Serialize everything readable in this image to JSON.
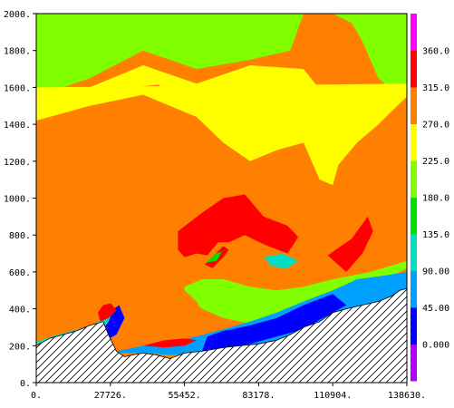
{
  "chart_data": {
    "type": "heatmap",
    "title": "",
    "xlabel": "",
    "ylabel": "",
    "x_ticks": [
      "0.",
      "27726.",
      "55452.",
      "83178.",
      "110904.",
      "138630."
    ],
    "x_tick_values": [
      0,
      27726,
      55452,
      83178,
      110904,
      138630
    ],
    "xlim": [
      0,
      138630
    ],
    "y_ticks": [
      "0.",
      "200.",
      "400.",
      "600.",
      "800.",
      "1000.",
      "1200.",
      "1400.",
      "1600.",
      "1800.",
      "2000."
    ],
    "y_tick_values": [
      0,
      200,
      400,
      600,
      800,
      1000,
      1200,
      1400,
      1600,
      1800,
      2000
    ],
    "ylim": [
      0,
      2000
    ],
    "colorbar": {
      "labels": [
        "0.000",
        "45.00",
        "90.00",
        "135.0",
        "180.0",
        "225.0",
        "270.0",
        "315.0",
        "360.0"
      ],
      "levels": [
        0,
        45,
        90,
        135,
        180,
        225,
        270,
        315,
        360
      ],
      "colors": [
        "#b000ff",
        "#0000ff",
        "#00a0ff",
        "#00e0c0",
        "#00e000",
        "#80ff00",
        "#ffff00",
        "#ff8000",
        "#ff0000",
        "#ff00ff"
      ]
    },
    "terrain": {
      "fill": "hatched",
      "profile_x": [
        0,
        5000,
        10000,
        15000,
        20000,
        25000,
        27000,
        30000,
        33000,
        36000,
        40000,
        45000,
        50000,
        55452,
        62000,
        70000,
        76000,
        83178,
        90000,
        95000,
        100000,
        106000,
        110904,
        116000,
        122000,
        128000,
        133000,
        136000,
        138630
      ],
      "profile_z": [
        200,
        240,
        260,
        280,
        310,
        330,
        260,
        170,
        140,
        150,
        160,
        150,
        130,
        160,
        170,
        190,
        200,
        210,
        230,
        260,
        300,
        330,
        380,
        400,
        420,
        440,
        470,
        500,
        510
      ]
    },
    "regions": [
      {
        "value": 300,
        "x": [
          0,
          138630,
          138630,
          0
        ],
        "z": [
          0,
          0,
          2000,
          2000
        ]
      },
      {
        "value": 200,
        "x": [
          0,
          20000,
          40000,
          60000,
          80000,
          95000,
          100000,
          90000,
          70000,
          50000,
          35000,
          20000,
          0
        ],
        "z": [
          1550,
          1650,
          1800,
          1700,
          1750,
          1800,
          2000,
          2000,
          2000,
          2000,
          2000,
          2000,
          2000
        ]
      },
      {
        "value": 250,
        "x": [
          0,
          20000,
          40000,
          60000,
          80000,
          95000,
          105000,
          110904,
          100000,
          80000,
          60000,
          40000,
          20000,
          0
        ],
        "z": [
          1500,
          1580,
          1680,
          1450,
          1350,
          1350,
          1550,
          1500,
          1700,
          1720,
          1620,
          1720,
          1600,
          1550
        ]
      },
      {
        "value": 200,
        "x": [
          0,
          15000,
          35000,
          55452,
          75000,
          90000,
          100000,
          110904,
          118000,
          122000,
          128000,
          132000,
          138630,
          138630,
          0
        ],
        "z": [
          1850,
          1850,
          1950,
          1800,
          1900,
          1900,
          2000,
          2000,
          1950,
          1850,
          1650,
          1600,
          1600,
          2000,
          2000
        ]
      },
      {
        "value": 250,
        "x": [
          0,
          20000,
          40000,
          60000,
          70000,
          80000,
          90000,
          100000,
          106000,
          110904,
          113000,
          120000,
          128000,
          135000,
          138630,
          138630,
          0
        ],
        "z": [
          1420,
          1500,
          1560,
          1440,
          1300,
          1200,
          1260,
          1300,
          1100,
          1070,
          1180,
          1300,
          1400,
          1500,
          1550,
          1620,
          1600
        ]
      },
      {
        "value": 260,
        "x": [
          0,
          10000,
          20000,
          32000,
          40000,
          50000
        ],
        "z": [
          1550,
          1570,
          1580,
          1640,
          1680,
          1620
        ]
      },
      {
        "value": 330,
        "x": [
          53000,
          62000,
          70000,
          78000,
          85000,
          94000,
          98000,
          94000,
          85000,
          78000,
          72000,
          68000,
          64000,
          60000,
          55452,
          53000
        ],
        "z": [
          820,
          920,
          1000,
          1020,
          900,
          850,
          790,
          700,
          750,
          800,
          760,
          760,
          690,
          700,
          680,
          720
        ]
      },
      {
        "value": 340,
        "x": [
          63000,
          67000,
          70000,
          72000,
          70000,
          66000,
          63000
        ],
        "z": [
          640,
          700,
          740,
          720,
          680,
          620,
          640
        ]
      },
      {
        "value": 150,
        "x": [
          63500,
          67000,
          69500,
          67500,
          63500
        ],
        "z": [
          650,
          700,
          710,
          660,
          650
        ]
      },
      {
        "value": 100,
        "x": [
          85000,
          92000,
          98000,
          94000,
          88000,
          85000
        ],
        "z": [
          680,
          700,
          660,
          620,
          630,
          680
        ]
      },
      {
        "value": 350,
        "x": [
          109000,
          118000,
          124000,
          126000,
          122000,
          116000,
          109000
        ],
        "z": [
          690,
          780,
          900,
          820,
          700,
          600,
          690
        ]
      },
      {
        "value": 200,
        "x": [
          55452,
          62000,
          70000,
          80000,
          88000,
          96000,
          102000,
          110904,
          120000,
          128000,
          138630,
          138630,
          125000,
          110904,
          100000,
          90000,
          80000,
          70000,
          62000,
          55452
        ],
        "z": [
          480,
          400,
          350,
          320,
          310,
          330,
          380,
          420,
          460,
          540,
          620,
          660,
          600,
          560,
          520,
          500,
          520,
          560,
          560,
          520
        ]
      },
      {
        "value": 270,
        "x": [
          0,
          10000,
          20000,
          25000,
          30000,
          35000,
          42000,
          50000,
          55452,
          60000,
          62000,
          60000,
          55452,
          48000,
          42000,
          35000,
          28000,
          20000,
          10000,
          0
        ],
        "z": [
          330,
          480,
          520,
          460,
          420,
          380,
          340,
          310,
          300,
          320,
          380,
          440,
          500,
          540,
          560,
          520,
          500,
          480,
          450,
          300
        ]
      },
      {
        "value": 120,
        "x": [
          0,
          8000,
          16000,
          22000,
          26000,
          28000,
          30000,
          32000,
          26000,
          20000,
          14000,
          8000,
          0
        ],
        "z": [
          220,
          260,
          290,
          320,
          360,
          390,
          410,
          330,
          260,
          250,
          240,
          230,
          210
        ]
      },
      {
        "value": 40,
        "x": [
          24000,
          27000,
          29000,
          31000,
          33000,
          30000,
          26000,
          24000
        ],
        "z": [
          270,
          330,
          400,
          420,
          350,
          260,
          230,
          270
        ]
      },
      {
        "value": 350,
        "x": [
          23000,
          25000,
          28000,
          30000,
          27000,
          24000,
          23000
        ],
        "z": [
          380,
          420,
          430,
          390,
          350,
          330,
          380
        ]
      },
      {
        "value": 80,
        "x": [
          30000,
          40000,
          50000,
          60000,
          70000,
          80000,
          90000,
          100000,
          110904,
          120000,
          128000,
          136000,
          138630,
          138630,
          130000,
          120000,
          110904,
          100000,
          90000,
          80000,
          70000,
          60000,
          50000,
          40000,
          30000
        ],
        "z": [
          160,
          160,
          150,
          160,
          170,
          190,
          220,
          260,
          310,
          360,
          400,
          440,
          460,
          600,
          580,
          560,
          500,
          440,
          380,
          330,
          290,
          250,
          220,
          200,
          170
        ]
      },
      {
        "value": 30,
        "x": [
          62000,
          70000,
          80000,
          90000,
          100000,
          106000,
          110904,
          116000,
          110904,
          100000,
          90000,
          80000,
          70000,
          64000,
          62000
        ],
        "z": [
          170,
          190,
          210,
          250,
          290,
          340,
          380,
          420,
          480,
          420,
          350,
          310,
          280,
          250,
          170
        ]
      },
      {
        "value": 60,
        "x": [
          116000,
          122000,
          128000,
          133000,
          138630,
          138630,
          130000,
          122000,
          116000
        ],
        "z": [
          420,
          440,
          470,
          500,
          510,
          580,
          560,
          520,
          420
        ]
      },
      {
        "value": 350,
        "x": [
          40000,
          48000,
          55452,
          60000,
          55452,
          48000,
          40000
        ],
        "z": [
          200,
          230,
          240,
          230,
          200,
          190,
          200
        ]
      }
    ]
  }
}
